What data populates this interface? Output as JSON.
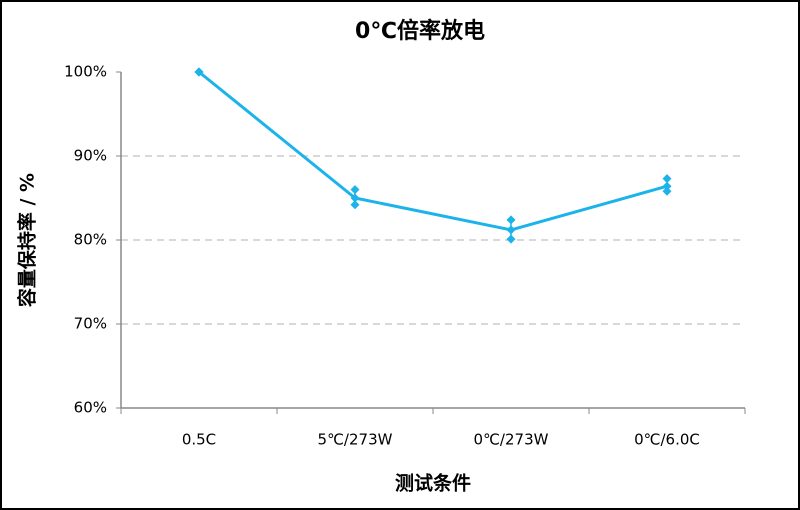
{
  "chart_data": {
    "type": "line",
    "title": "0℃倍率放电",
    "x_label": "测试条件",
    "y_label": "容量保持率 / %",
    "categories": [
      "0.5C",
      "5℃/273W",
      "0℃/273W",
      "0℃/6.0C"
    ],
    "values": [
      100,
      85.0,
      81.2,
      86.4
    ],
    "highs": [
      100,
      86.0,
      82.4,
      87.3
    ],
    "lows": [
      100,
      84.2,
      80.1,
      85.8
    ],
    "color": "#1cb3ea",
    "ylim": [
      60,
      100
    ],
    "yticks": [
      {
        "value": 60,
        "label": "60%"
      },
      {
        "value": 70,
        "label": "70%"
      },
      {
        "value": 80,
        "label": "80%"
      },
      {
        "value": 90,
        "label": "90%"
      },
      {
        "value": 100,
        "label": "100%"
      }
    ],
    "grid": true
  }
}
